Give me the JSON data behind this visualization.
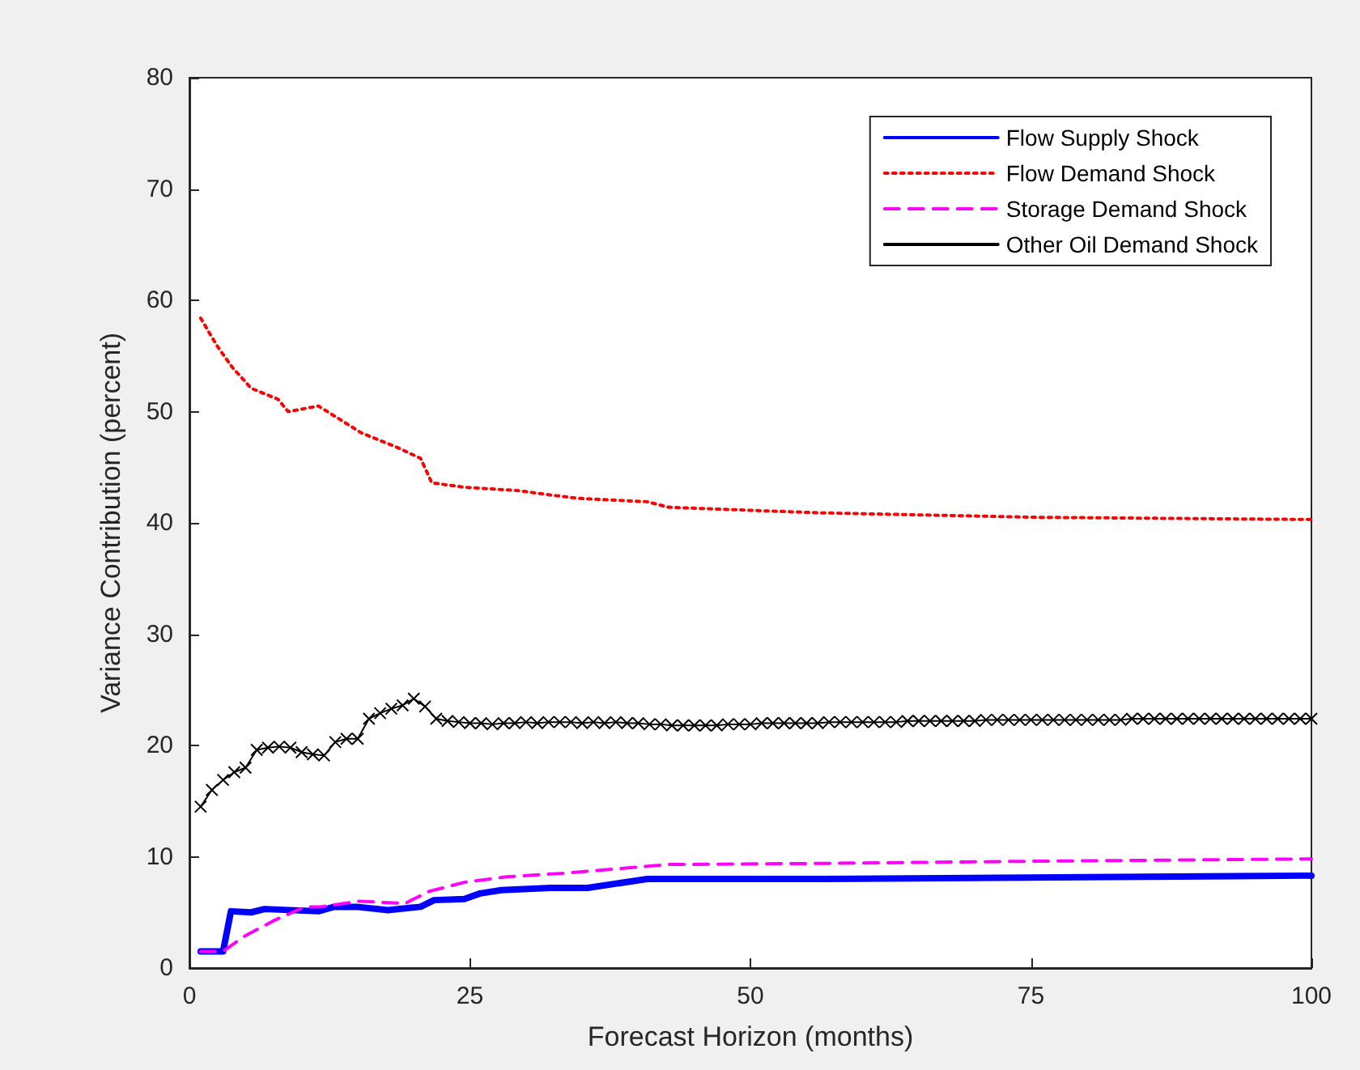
{
  "chart_data": {
    "type": "line",
    "xlabel": "Forecast Horizon (months)",
    "ylabel": "Variance Contribution (percent)",
    "xlim": [
      0,
      100
    ],
    "xticks": [
      0,
      25,
      50,
      75,
      100
    ],
    "ylim": [
      0,
      80
    ],
    "yticks": [
      0,
      10,
      20,
      30,
      40,
      50,
      60,
      70,
      80
    ],
    "grid": false,
    "legend": "top right",
    "series": [
      {
        "name": "Flow Supply Shock",
        "color": "#0000ff",
        "line_style": "solid",
        "marker": "none",
        "x": [
          1,
          3,
          3.7,
          5.5,
          6.7,
          11.5,
          12.9,
          14.9,
          17.7,
          20.6,
          21.8,
          24.5,
          25.9,
          27.8,
          32.2,
          35.5,
          40.8,
          56.2,
          99.5,
          100
        ],
        "values": [
          1.5,
          1.5,
          5.1,
          5.0,
          5.3,
          5.1,
          5.5,
          5.5,
          5.2,
          5.5,
          6.1,
          6.2,
          6.7,
          7.0,
          7.2,
          7.2,
          8.0,
          8.0,
          8.3,
          8.3
        ]
      },
      {
        "name": "Flow Demand Shock",
        "color": "#ff0000",
        "line_style": "dotted",
        "marker": "none",
        "x": [
          1,
          2.4,
          3.8,
          5.5,
          7.9,
          8.8,
          11.5,
          15.3,
          18.7,
          20.6,
          21.6,
          24.5,
          29.3,
          32.2,
          34.6,
          40.8,
          42.7,
          56.2,
          75.5,
          100
        ],
        "values": [
          58.4,
          56.0,
          54.0,
          52.1,
          51.1,
          50.0,
          50.5,
          48.1,
          46.7,
          45.8,
          43.6,
          43.2,
          42.9,
          42.5,
          42.2,
          41.9,
          41.4,
          40.9,
          40.5,
          40.3
        ]
      },
      {
        "name": "Storage Demand Shock",
        "color": "#ff00ff",
        "line_style": "dashed",
        "marker": "none",
        "x": [
          1,
          3,
          4.8,
          7.6,
          10.3,
          11.7,
          15.1,
          19.2,
          21.4,
          24.5,
          28.3,
          33.1,
          42.7,
          56.2,
          75.5,
          100
        ],
        "values": [
          1.5,
          1.5,
          2.8,
          4.3,
          5.5,
          5.5,
          6.0,
          5.8,
          6.9,
          7.7,
          8.2,
          8.5,
          9.3,
          9.4,
          9.6,
          9.8
        ]
      },
      {
        "name": "Other Oil Demand Shock",
        "color": "#000000",
        "line_style": "solid",
        "marker": "cross",
        "x": [
          1,
          2,
          3,
          4,
          5,
          6,
          7,
          8,
          9,
          10,
          11,
          12,
          13,
          14,
          15,
          16,
          17,
          18,
          19,
          20,
          21,
          22,
          23,
          24,
          25,
          26,
          27,
          28,
          29,
          30,
          31,
          32,
          33,
          34,
          35,
          36,
          37,
          38,
          39,
          40,
          41,
          42,
          43,
          44,
          45,
          46,
          47,
          48,
          49,
          50,
          51,
          52,
          53,
          54,
          55,
          56,
          57,
          58,
          59,
          60,
          61,
          62,
          63,
          64,
          65,
          66,
          67,
          68,
          69,
          70,
          71,
          72,
          73,
          74,
          75,
          76,
          77,
          78,
          79,
          80,
          81,
          82,
          83,
          84,
          85,
          86,
          87,
          88,
          89,
          90,
          91,
          92,
          93,
          94,
          95,
          96,
          97,
          98,
          99,
          100
        ],
        "values": [
          14.5,
          16.0,
          16.9,
          17.6,
          18.0,
          19.6,
          19.8,
          19.9,
          19.8,
          19.4,
          19.2,
          19.1,
          20.3,
          20.6,
          20.6,
          22.4,
          22.9,
          23.3,
          23.6,
          24.2,
          23.5,
          22.4,
          22.2,
          22.1,
          22.0,
          22.0,
          21.9,
          22.0,
          22.0,
          22.1,
          22.0,
          22.1,
          22.1,
          22.1,
          22.0,
          22.1,
          22.0,
          22.1,
          22.0,
          22.0,
          21.9,
          21.9,
          21.8,
          21.8,
          21.8,
          21.8,
          21.8,
          21.9,
          21.9,
          21.9,
          22.0,
          22.0,
          22.0,
          22.0,
          22.0,
          22.0,
          22.1,
          22.1,
          22.1,
          22.1,
          22.1,
          22.1,
          22.1,
          22.2,
          22.2,
          22.2,
          22.2,
          22.2,
          22.2,
          22.2,
          22.3,
          22.3,
          22.3,
          22.3,
          22.3,
          22.3,
          22.3,
          22.3,
          22.3,
          22.3,
          22.3,
          22.3,
          22.3,
          22.4,
          22.4,
          22.4,
          22.4,
          22.4,
          22.4,
          22.4,
          22.4,
          22.4,
          22.4,
          22.4,
          22.4,
          22.4,
          22.4,
          22.4,
          22.4,
          22.4
        ]
      }
    ]
  }
}
